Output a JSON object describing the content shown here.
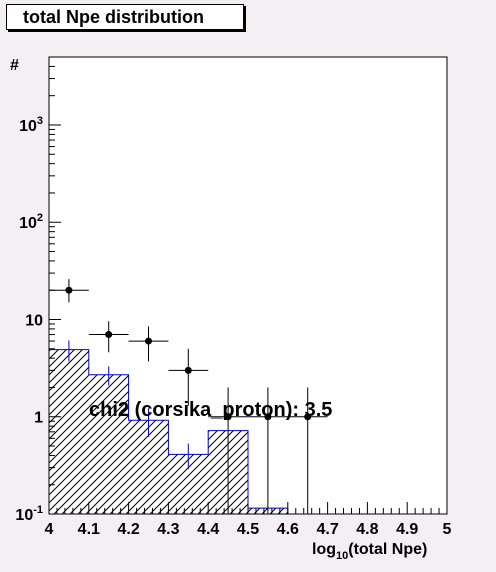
{
  "chart_data": {
    "type": "histogram",
    "title": "total Npe distribution",
    "xlabel": "log",
    "xlabel_sub": "10",
    "xlabel_rest": "(total Npe)",
    "ylabel": "#",
    "xlim": [
      4.0,
      5.0
    ],
    "ylim": [
      0.1,
      5000
    ],
    "yscale": "log",
    "xticks": [
      "4",
      "4.1",
      "4.2",
      "4.3",
      "4.4",
      "4.5",
      "4.6",
      "4.7",
      "4.8",
      "4.9",
      "5"
    ],
    "yticks": [
      {
        "value": 0.1,
        "base": "10",
        "exp": "-1"
      },
      {
        "value": 1,
        "base": "1",
        "exp": ""
      },
      {
        "value": 10,
        "base": "10",
        "exp": ""
      },
      {
        "value": 100,
        "base": "10",
        "exp": "2"
      },
      {
        "value": 1000,
        "base": "10",
        "exp": "3"
      }
    ],
    "series": [
      {
        "kind": "hatched-histogram",
        "color": "#0000cc",
        "bins": [
          {
            "x0": 4.0,
            "x1": 4.1,
            "y": 4.9,
            "err": 1.2
          },
          {
            "x0": 4.1,
            "x1": 4.2,
            "y": 2.7,
            "err": 0.6
          },
          {
            "x0": 4.2,
            "x1": 4.3,
            "y": 0.92,
            "err": 0.3
          },
          {
            "x0": 4.3,
            "x1": 4.4,
            "y": 0.41,
            "err": 0.12
          },
          {
            "x0": 4.4,
            "x1": 4.5,
            "y": 0.72,
            "err": 0.0
          },
          {
            "x0": 4.5,
            "x1": 4.6,
            "y": 0.115,
            "err": 0.0
          }
        ]
      },
      {
        "kind": "points",
        "color": "#000000",
        "points": [
          {
            "x": 4.05,
            "y": 20,
            "ylo": 15,
            "yhi": 26
          },
          {
            "x": 4.15,
            "y": 7,
            "ylo": 4.6,
            "yhi": 9.6
          },
          {
            "x": 4.25,
            "y": 6,
            "ylo": 3.7,
            "yhi": 8.5
          },
          {
            "x": 4.35,
            "y": 3,
            "ylo": 1.3,
            "yhi": 5.0
          },
          {
            "x": 4.45,
            "y": 1,
            "ylo": 0.1,
            "yhi": 2.0
          },
          {
            "x": 4.55,
            "y": 1,
            "ylo": 0.1,
            "yhi": 2.0
          },
          {
            "x": 4.65,
            "y": 1,
            "ylo": 0.1,
            "yhi": 2.0
          }
        ]
      }
    ],
    "annotation": "chi2 (corsika_proton): 3.5"
  }
}
